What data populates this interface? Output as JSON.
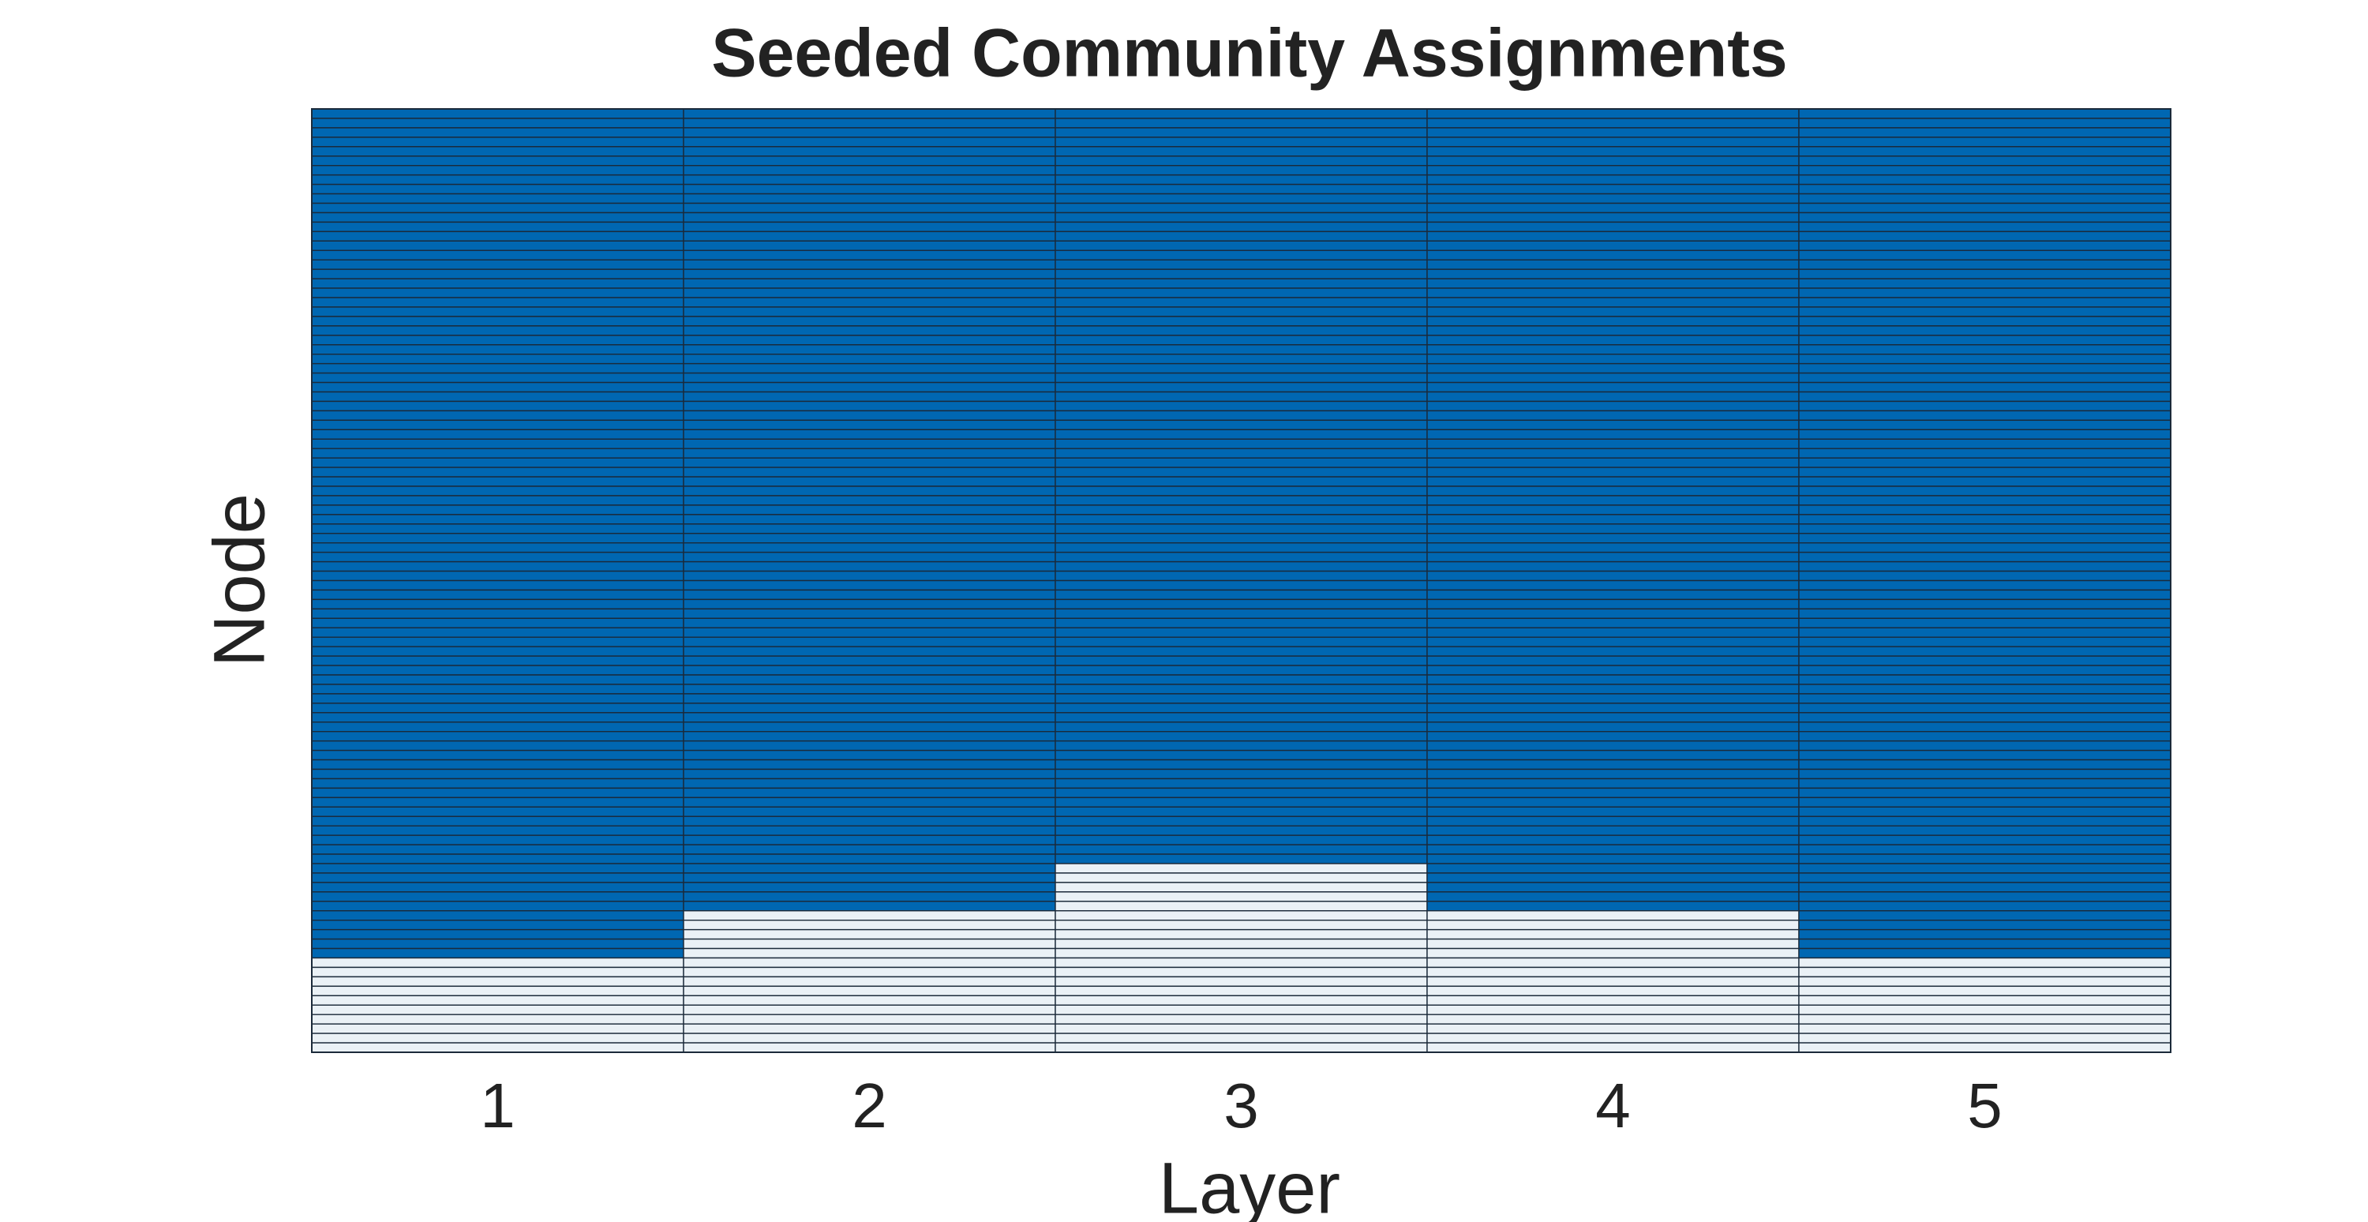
{
  "chart_data": {
    "type": "heatmap",
    "title": "Seeded Community Assignments",
    "x_label": "Layer",
    "y_label": "Node",
    "categories": [
      "1",
      "2",
      "3",
      "4",
      "5"
    ],
    "colormap": [
      "#0067b2",
      "#eaf1f6"
    ],
    "values": [
      [
        1,
        1,
        1,
        1,
        1
      ],
      [
        1,
        1,
        1,
        1,
        1
      ],
      [
        1,
        1,
        1,
        1,
        1
      ],
      [
        1,
        1,
        1,
        1,
        1
      ],
      [
        1,
        1,
        1,
        1,
        1
      ],
      [
        1,
        1,
        1,
        1,
        1
      ],
      [
        1,
        1,
        1,
        1,
        1
      ],
      [
        1,
        1,
        1,
        1,
        1
      ],
      [
        1,
        1,
        1,
        1,
        1
      ],
      [
        1,
        1,
        1,
        1,
        1
      ],
      [
        1,
        1,
        1,
        1,
        1
      ],
      [
        1,
        1,
        1,
        1,
        1
      ],
      [
        1,
        1,
        1,
        1,
        1
      ],
      [
        1,
        1,
        1,
        1,
        1
      ],
      [
        1,
        1,
        1,
        1,
        1
      ],
      [
        1,
        1,
        1,
        1,
        1
      ],
      [
        1,
        1,
        1,
        1,
        1
      ],
      [
        1,
        1,
        1,
        1,
        1
      ],
      [
        1,
        1,
        1,
        1,
        1
      ],
      [
        1,
        1,
        1,
        1,
        1
      ],
      [
        1,
        1,
        1,
        1,
        1
      ],
      [
        1,
        1,
        1,
        1,
        1
      ],
      [
        1,
        1,
        1,
        1,
        1
      ],
      [
        1,
        1,
        1,
        1,
        1
      ],
      [
        1,
        1,
        1,
        1,
        1
      ],
      [
        1,
        1,
        1,
        1,
        1
      ],
      [
        1,
        1,
        1,
        1,
        1
      ],
      [
        1,
        1,
        1,
        1,
        1
      ],
      [
        1,
        1,
        1,
        1,
        1
      ],
      [
        1,
        1,
        1,
        1,
        1
      ],
      [
        1,
        1,
        1,
        1,
        1
      ],
      [
        1,
        1,
        1,
        1,
        1
      ],
      [
        1,
        1,
        1,
        1,
        1
      ],
      [
        1,
        1,
        1,
        1,
        1
      ],
      [
        1,
        1,
        1,
        1,
        1
      ],
      [
        1,
        1,
        1,
        1,
        1
      ],
      [
        1,
        1,
        1,
        1,
        1
      ],
      [
        1,
        1,
        1,
        1,
        1
      ],
      [
        1,
        1,
        1,
        1,
        1
      ],
      [
        1,
        1,
        1,
        1,
        1
      ],
      [
        1,
        1,
        1,
        1,
        1
      ],
      [
        1,
        1,
        1,
        1,
        1
      ],
      [
        1,
        1,
        1,
        1,
        1
      ],
      [
        1,
        1,
        1,
        1,
        1
      ],
      [
        1,
        1,
        1,
        1,
        1
      ],
      [
        1,
        1,
        1,
        1,
        1
      ],
      [
        1,
        1,
        1,
        1,
        1
      ],
      [
        1,
        1,
        1,
        1,
        1
      ],
      [
        1,
        1,
        1,
        1,
        1
      ],
      [
        1,
        1,
        1,
        1,
        1
      ],
      [
        1,
        1,
        1,
        1,
        1
      ],
      [
        1,
        1,
        1,
        1,
        1
      ],
      [
        1,
        1,
        1,
        1,
        1
      ],
      [
        1,
        1,
        1,
        1,
        1
      ],
      [
        1,
        1,
        1,
        1,
        1
      ],
      [
        1,
        1,
        1,
        1,
        1
      ],
      [
        1,
        1,
        1,
        1,
        1
      ],
      [
        1,
        1,
        1,
        1,
        1
      ],
      [
        1,
        1,
        1,
        1,
        1
      ],
      [
        1,
        1,
        1,
        1,
        1
      ],
      [
        1,
        1,
        1,
        1,
        1
      ],
      [
        1,
        1,
        1,
        1,
        1
      ],
      [
        1,
        1,
        1,
        1,
        1
      ],
      [
        1,
        1,
        1,
        1,
        1
      ],
      [
        1,
        1,
        1,
        1,
        1
      ],
      [
        1,
        1,
        1,
        1,
        1
      ],
      [
        1,
        1,
        1,
        1,
        1
      ],
      [
        1,
        1,
        1,
        1,
        1
      ],
      [
        1,
        1,
        1,
        1,
        1
      ],
      [
        1,
        1,
        1,
        1,
        1
      ],
      [
        1,
        1,
        1,
        1,
        1
      ],
      [
        1,
        1,
        1,
        1,
        1
      ],
      [
        1,
        1,
        1,
        1,
        1
      ],
      [
        1,
        1,
        1,
        1,
        1
      ],
      [
        1,
        1,
        1,
        1,
        1
      ],
      [
        1,
        1,
        1,
        1,
        1
      ],
      [
        1,
        1,
        1,
        1,
        1
      ],
      [
        1,
        1,
        1,
        1,
        1
      ],
      [
        1,
        1,
        1,
        1,
        1
      ],
      [
        1,
        1,
        1,
        1,
        1
      ],
      [
        1,
        1,
        2,
        1,
        1
      ],
      [
        1,
        1,
        2,
        1,
        1
      ],
      [
        1,
        1,
        2,
        1,
        1
      ],
      [
        1,
        1,
        2,
        1,
        1
      ],
      [
        1,
        1,
        2,
        1,
        1
      ],
      [
        1,
        2,
        2,
        2,
        1
      ],
      [
        1,
        2,
        2,
        2,
        1
      ],
      [
        1,
        2,
        2,
        2,
        1
      ],
      [
        1,
        2,
        2,
        2,
        1
      ],
      [
        1,
        2,
        2,
        2,
        1
      ],
      [
        2,
        2,
        2,
        2,
        2
      ],
      [
        2,
        2,
        2,
        2,
        2
      ],
      [
        2,
        2,
        2,
        2,
        2
      ],
      [
        2,
        2,
        2,
        2,
        2
      ],
      [
        2,
        2,
        2,
        2,
        2
      ],
      [
        2,
        2,
        2,
        2,
        2
      ],
      [
        2,
        2,
        2,
        2,
        2
      ],
      [
        2,
        2,
        2,
        2,
        2
      ],
      [
        2,
        2,
        2,
        2,
        2
      ],
      [
        2,
        2,
        2,
        2,
        2
      ]
    ]
  }
}
